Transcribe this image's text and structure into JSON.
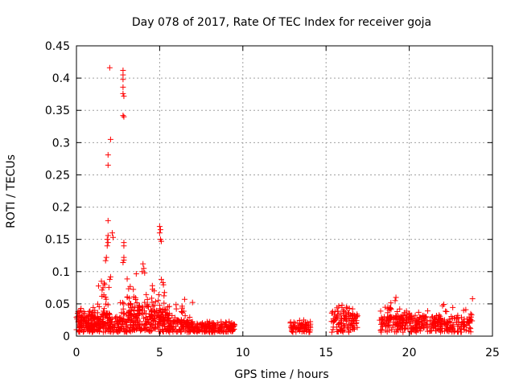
{
  "chart_data": {
    "type": "scatter",
    "title": "Day 078 of 2017, Rate Of TEC Index for receiver goja",
    "xlabel": "GPS time / hours",
    "ylabel": "ROTI / TECUs",
    "xlim": [
      0,
      25
    ],
    "ylim": [
      0,
      0.45
    ],
    "xticks": [
      0,
      5,
      10,
      15,
      20,
      25
    ],
    "yticks": [
      0,
      0.05,
      0.1,
      0.15,
      0.2,
      0.25,
      0.3,
      0.35,
      0.4,
      0.45
    ],
    "xtick_labels": [
      "0",
      "5",
      "10",
      "15",
      "20",
      "25"
    ],
    "ytick_labels": [
      "0",
      "0.05",
      "0.1",
      "0.15",
      "0.2",
      "0.25",
      "0.3",
      "0.35",
      "0.4",
      "0.45"
    ],
    "grid": true,
    "marker": "+",
    "series_color": "#ff0000",
    "clusters": [
      {
        "x_range": [
          0.0,
          1.2
        ],
        "base": [
          0.006,
          0.03
        ],
        "peak": 0.05,
        "n": 140
      },
      {
        "x_range": [
          1.2,
          2.0
        ],
        "base": [
          0.006,
          0.035
        ],
        "peak": 0.085,
        "n": 90
      },
      {
        "x_range": [
          2.0,
          3.0
        ],
        "base": [
          0.006,
          0.03
        ],
        "peak": 0.06,
        "n": 80
      },
      {
        "x_range": [
          3.0,
          4.5
        ],
        "base": [
          0.006,
          0.045
        ],
        "peak": 0.11,
        "n": 150
      },
      {
        "x_range": [
          4.5,
          5.5
        ],
        "base": [
          0.006,
          0.04
        ],
        "peak": 0.09,
        "n": 110
      },
      {
        "x_range": [
          5.5,
          7.0
        ],
        "base": [
          0.006,
          0.025
        ],
        "peak": 0.058,
        "n": 120
      },
      {
        "x_range": [
          7.0,
          9.5
        ],
        "base": [
          0.006,
          0.018
        ],
        "peak": 0.025,
        "n": 160
      },
      {
        "x_range": [
          12.8,
          14.1
        ],
        "base": [
          0.006,
          0.02
        ],
        "peak": 0.028,
        "n": 70
      },
      {
        "x_range": [
          15.3,
          16.5
        ],
        "base": [
          0.006,
          0.035
        ],
        "peak": 0.052,
        "n": 80
      },
      {
        "x_range": [
          16.5,
          16.9
        ],
        "base": [
          0.006,
          0.03
        ],
        "peak": 0.045,
        "n": 30
      },
      {
        "x_range": [
          18.2,
          19.6
        ],
        "base": [
          0.006,
          0.03
        ],
        "peak": 0.06,
        "n": 100
      },
      {
        "x_range": [
          19.6,
          21.5
        ],
        "base": [
          0.006,
          0.028
        ],
        "peak": 0.045,
        "n": 120
      },
      {
        "x_range": [
          21.5,
          23.8
        ],
        "base": [
          0.006,
          0.03
        ],
        "peak": 0.058,
        "n": 140
      }
    ],
    "outliers": [
      {
        "x": 2.0,
        "y": 0.416
      },
      {
        "x": 2.8,
        "y": 0.412
      },
      {
        "x": 2.8,
        "y": 0.405
      },
      {
        "x": 2.8,
        "y": 0.398
      },
      {
        "x": 2.8,
        "y": 0.386
      },
      {
        "x": 2.8,
        "y": 0.376
      },
      {
        "x": 2.85,
        "y": 0.372
      },
      {
        "x": 2.8,
        "y": 0.342
      },
      {
        "x": 2.85,
        "y": 0.34
      },
      {
        "x": 2.05,
        "y": 0.305
      },
      {
        "x": 1.9,
        "y": 0.281
      },
      {
        "x": 1.9,
        "y": 0.265
      },
      {
        "x": 1.9,
        "y": 0.179
      },
      {
        "x": 2.15,
        "y": 0.16
      },
      {
        "x": 1.9,
        "y": 0.156
      },
      {
        "x": 1.85,
        "y": 0.15
      },
      {
        "x": 2.2,
        "y": 0.153
      },
      {
        "x": 1.9,
        "y": 0.145
      },
      {
        "x": 1.85,
        "y": 0.14
      },
      {
        "x": 1.8,
        "y": 0.122
      },
      {
        "x": 1.75,
        "y": 0.117
      },
      {
        "x": 2.85,
        "y": 0.145
      },
      {
        "x": 2.85,
        "y": 0.14
      },
      {
        "x": 2.85,
        "y": 0.122
      },
      {
        "x": 2.85,
        "y": 0.118
      },
      {
        "x": 2.8,
        "y": 0.114
      },
      {
        "x": 5.0,
        "y": 0.17
      },
      {
        "x": 5.05,
        "y": 0.165
      },
      {
        "x": 5.0,
        "y": 0.16
      },
      {
        "x": 5.05,
        "y": 0.15
      },
      {
        "x": 5.1,
        "y": 0.147
      },
      {
        "x": 2.05,
        "y": 0.092
      },
      {
        "x": 2.0,
        "y": 0.088
      },
      {
        "x": 4.0,
        "y": 0.112
      },
      {
        "x": 4.05,
        "y": 0.105
      },
      {
        "x": 3.95,
        "y": 0.1
      },
      {
        "x": 4.1,
        "y": 0.098
      },
      {
        "x": 23.8,
        "y": 0.058
      },
      {
        "x": 19.2,
        "y": 0.06
      },
      {
        "x": 19.15,
        "y": 0.055
      },
      {
        "x": 22.0,
        "y": 0.047
      },
      {
        "x": 6.5,
        "y": 0.057
      },
      {
        "x": 1.5,
        "y": 0.085
      },
      {
        "x": 1.7,
        "y": 0.08
      },
      {
        "x": 1.6,
        "y": 0.075
      },
      {
        "x": 5.1,
        "y": 0.088
      },
      {
        "x": 5.2,
        "y": 0.083
      }
    ]
  }
}
